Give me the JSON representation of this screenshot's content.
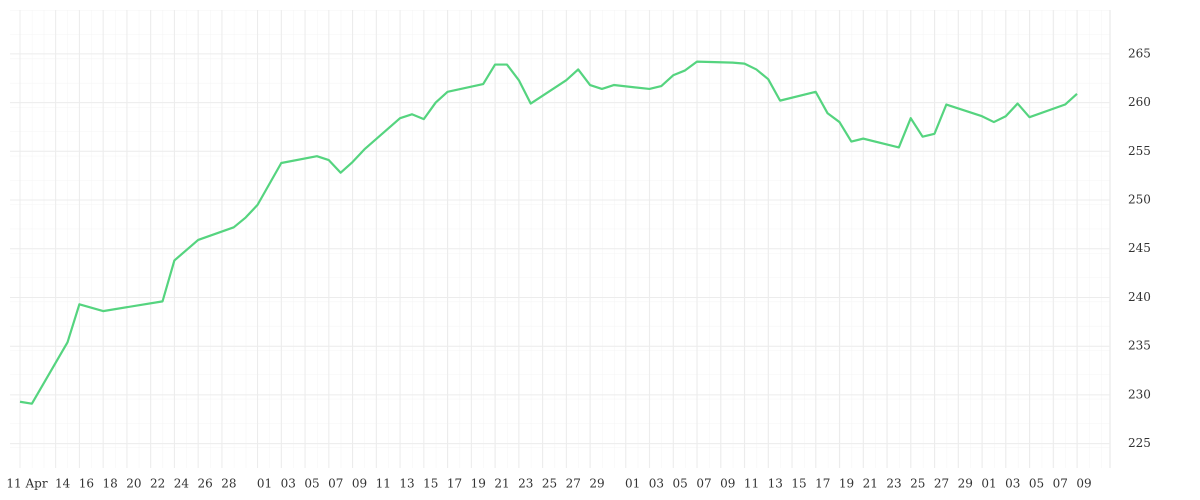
{
  "chart_data": {
    "type": "line",
    "x": [
      "Apr 11",
      "Apr 12",
      "Apr 15",
      "Apr 16",
      "Apr 18",
      "Apr 23",
      "Apr 24",
      "Apr 26",
      "Apr 29",
      "Apr 30",
      "May 1",
      "May 3",
      "May 6",
      "May 7",
      "May 8",
      "May 9",
      "May 10",
      "May 13",
      "May 14",
      "May 15",
      "May 16",
      "May 17",
      "May 20",
      "May 21",
      "May 22",
      "May 23",
      "May 24",
      "May 27",
      "May 28",
      "May 29",
      "May 30",
      "May 31",
      "Jun 3",
      "Jun 4",
      "Jun 5",
      "Jun 6",
      "Jun 7",
      "Jun 10",
      "Jun 11",
      "Jun 12",
      "Jun 13",
      "Jun 14",
      "Jun 17",
      "Jun 18",
      "Jun 19",
      "Jun 20",
      "Jun 21",
      "Jun 24",
      "Jun 25",
      "Jun 26",
      "Jun 27",
      "Jun 28",
      "Jul 1",
      "Jul 2",
      "Jul 3",
      "Jul 4",
      "Jul 5",
      "Jul 8",
      "Jul 9"
    ],
    "series": [
      {
        "color": "#55d47f",
        "values": [
          229.3,
          229.1,
          235.4,
          239.3,
          238.6,
          239.6,
          243.8,
          245.9,
          247.2,
          248.2,
          249.5,
          253.8,
          254.5,
          254.1,
          252.8,
          253.9,
          255.2,
          258.4,
          258.8,
          258.3,
          260.0,
          261.1,
          261.9,
          263.9,
          263.9,
          262.3,
          259.9,
          262.3,
          263.4,
          261.8,
          261.4,
          261.8,
          261.4,
          261.7,
          262.8,
          263.3,
          264.2,
          264.1,
          264.0,
          263.4,
          262.4,
          260.2,
          261.1,
          258.9,
          258.0,
          256.0,
          256.3,
          255.4,
          258.4,
          256.5,
          256.8,
          259.8,
          258.6,
          258.0,
          258.6,
          259.9,
          258.5,
          259.8,
          260.9
        ]
      }
    ],
    "xlim": [
      "Apr 11",
      "Jul 9"
    ],
    "xticks": [
      {
        "value": "Apr 11",
        "label": "11 Apr"
      },
      {
        "value": "Apr 14",
        "label": "14"
      },
      {
        "value": "Apr 16",
        "label": "16"
      },
      {
        "value": "Apr 18",
        "label": "18"
      },
      {
        "value": "Apr 20",
        "label": "20"
      },
      {
        "value": "Apr 22",
        "label": "22"
      },
      {
        "value": "Apr 24",
        "label": "24"
      },
      {
        "value": "Apr 26",
        "label": "26"
      },
      {
        "value": "Apr 28",
        "label": "28"
      },
      {
        "value": "May 1",
        "label": "01"
      },
      {
        "value": "May 3",
        "label": "03"
      },
      {
        "value": "May 5",
        "label": "05"
      },
      {
        "value": "May 7",
        "label": "07"
      },
      {
        "value": "May 9",
        "label": "09"
      },
      {
        "value": "May 11",
        "label": "11"
      },
      {
        "value": "May 13",
        "label": "13"
      },
      {
        "value": "May 15",
        "label": "15"
      },
      {
        "value": "May 17",
        "label": "17"
      },
      {
        "value": "May 19",
        "label": "19"
      },
      {
        "value": "May 21",
        "label": "21"
      },
      {
        "value": "May 23",
        "label": "23"
      },
      {
        "value": "May 25",
        "label": "25"
      },
      {
        "value": "May 27",
        "label": "27"
      },
      {
        "value": "May 29",
        "label": "29"
      },
      {
        "value": "Jun 1",
        "label": "01"
      },
      {
        "value": "Jun 3",
        "label": "03"
      },
      {
        "value": "Jun 5",
        "label": "05"
      },
      {
        "value": "Jun 7",
        "label": "07"
      },
      {
        "value": "Jun 9",
        "label": "09"
      },
      {
        "value": "Jun 11",
        "label": "11"
      },
      {
        "value": "Jun 13",
        "label": "13"
      },
      {
        "value": "Jun 15",
        "label": "15"
      },
      {
        "value": "Jun 17",
        "label": "17"
      },
      {
        "value": "Jun 19",
        "label": "19"
      },
      {
        "value": "Jun 21",
        "label": "21"
      },
      {
        "value": "Jun 23",
        "label": "23"
      },
      {
        "value": "Jun 25",
        "label": "25"
      },
      {
        "value": "Jun 27",
        "label": "27"
      },
      {
        "value": "Jun 29",
        "label": "29"
      },
      {
        "value": "Jul 1",
        "label": "01"
      },
      {
        "value": "Jul 3",
        "label": "03"
      },
      {
        "value": "Jul 5",
        "label": "05"
      },
      {
        "value": "Jul 7",
        "label": "07"
      },
      {
        "value": "Jul 9",
        "label": "09"
      }
    ],
    "ylim": [
      222.5,
      269.5
    ],
    "yticks": [
      225,
      230,
      235,
      240,
      245,
      250,
      255,
      260,
      265
    ],
    "grid": true
  }
}
